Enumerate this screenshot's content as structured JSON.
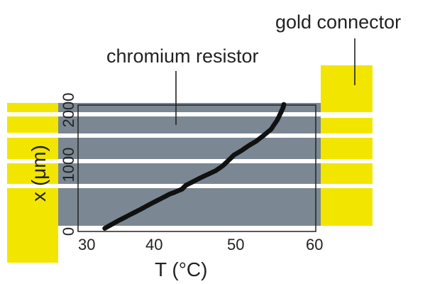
{
  "annotations": {
    "gold_connector": "gold connector",
    "chromium_resistor": "chromium resistor"
  },
  "colors": {
    "gold": "#f2e600",
    "resistor": "#7b8893",
    "stripe": "#ffffff",
    "data_marker": "#111111",
    "frame": "#222222"
  },
  "chart_data": {
    "type": "scatter",
    "xlabel": "T (°C)",
    "ylabel": "x (μm)",
    "xlim": [
      28,
      60
    ],
    "ylim": [
      0,
      2000
    ],
    "x_ticks": [
      "30",
      "40",
      "50",
      "60"
    ],
    "y_ticks": [
      "0",
      "1000",
      "2000"
    ],
    "series": [
      {
        "points": [
          [
            31.6,
            50
          ],
          [
            32.5,
            110
          ],
          [
            33.5,
            175
          ],
          [
            34.5,
            235
          ],
          [
            35.5,
            295
          ],
          [
            36.5,
            355
          ],
          [
            37.5,
            420
          ],
          [
            38.5,
            480
          ],
          [
            39.5,
            540
          ],
          [
            40.3,
            590
          ],
          [
            41.0,
            620
          ],
          [
            42.0,
            670
          ],
          [
            42.5,
            730
          ],
          [
            43.5,
            790
          ],
          [
            44.5,
            850
          ],
          [
            45.5,
            905
          ],
          [
            46.5,
            960
          ],
          [
            47.5,
            1040
          ],
          [
            48.3,
            1130
          ],
          [
            49.0,
            1210
          ],
          [
            50.0,
            1280
          ],
          [
            51.0,
            1360
          ],
          [
            52.0,
            1430
          ],
          [
            53.0,
            1520
          ],
          [
            54.0,
            1620
          ],
          [
            54.8,
            1760
          ],
          [
            55.3,
            1880
          ],
          [
            55.6,
            1960
          ],
          [
            55.7,
            2010
          ]
        ]
      }
    ]
  }
}
